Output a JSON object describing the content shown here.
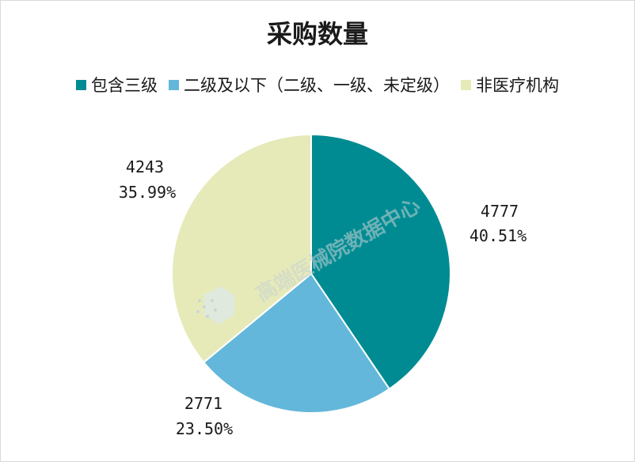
{
  "chart_data": {
    "type": "pie",
    "title": "采购数量",
    "legend_position": "top",
    "slices": [
      {
        "name": "包含三级",
        "value": 4777,
        "percent_label": "40.51%",
        "color": "#008b93"
      },
      {
        "name": "二级及以下（二级、一级、未定级）",
        "value": 2771,
        "percent_label": "23.50%",
        "color": "#63b7da"
      },
      {
        "name": "非医疗机构",
        "value": 4243,
        "percent_label": "35.99%",
        "color": "#e6eab9"
      }
    ]
  },
  "watermark": {
    "text": "高端医械院数据中心"
  }
}
